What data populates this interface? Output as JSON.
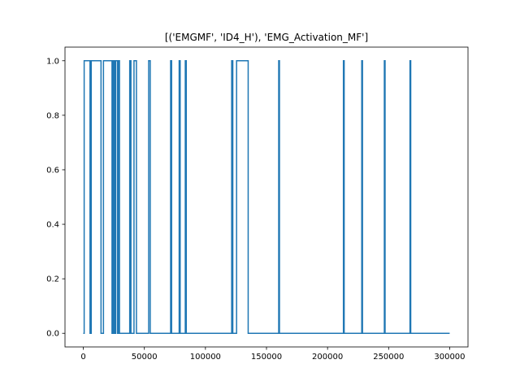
{
  "chart_data": {
    "type": "line",
    "title": "[('EMGMF', 'ID4_H'), 'EMG_Activation_MF']",
    "xlabel": "",
    "ylabel": "",
    "xlim": [
      -15000,
      315000
    ],
    "ylim": [
      -0.05,
      1.05
    ],
    "xticks": [
      0,
      50000,
      100000,
      150000,
      200000,
      250000,
      300000
    ],
    "xtick_labels": [
      "0",
      "50000",
      "100000",
      "150000",
      "200000",
      "250000",
      "300000"
    ],
    "yticks": [
      0.0,
      0.2,
      0.4,
      0.6,
      0.8,
      1.0
    ],
    "ytick_labels": [
      "0.0",
      "0.2",
      "0.4",
      "0.6",
      "0.8",
      "1.0"
    ],
    "grid": false,
    "series": [
      {
        "color": "#1f77b4",
        "x": [
          0,
          700,
          700,
          5500,
          5500,
          6500,
          6500,
          14500,
          14500,
          16500,
          16500,
          23500,
          23500,
          24500,
          24500,
          25500,
          25500,
          26500,
          26500,
          28000,
          28000,
          28800,
          28800,
          29600,
          29600,
          38000,
          38000,
          39000,
          39000,
          41500,
          41500,
          43500,
          43500,
          53500,
          53500,
          54800,
          54800,
          71500,
          71500,
          72300,
          72300,
          78500,
          78500,
          79300,
          79300,
          83500,
          83500,
          84300,
          84300,
          121500,
          121500,
          122400,
          122400,
          125500,
          125500,
          135000,
          135000,
          160000,
          160000,
          160600,
          160600,
          213000,
          213000,
          213600,
          213600,
          228000,
          228000,
          228600,
          228600,
          246500,
          246500,
          247100,
          247100,
          267500,
          267500,
          268100,
          268100,
          300000
        ],
        "y": [
          0,
          0,
          1,
          1,
          0,
          0,
          1,
          1,
          0,
          0,
          1,
          1,
          0,
          0,
          1,
          1,
          0,
          0,
          1,
          1,
          0,
          0,
          1,
          1,
          0,
          0,
          1,
          1,
          0,
          0,
          1,
          1,
          0,
          0,
          1,
          1,
          0,
          0,
          1,
          1,
          0,
          0,
          1,
          1,
          0,
          0,
          1,
          1,
          0,
          0,
          1,
          1,
          0,
          0,
          1,
          1,
          0,
          0,
          1,
          1,
          0,
          0,
          1,
          1,
          0,
          0,
          1,
          1,
          0,
          0,
          1,
          1,
          0,
          0,
          1,
          1,
          0,
          0
        ]
      }
    ]
  }
}
